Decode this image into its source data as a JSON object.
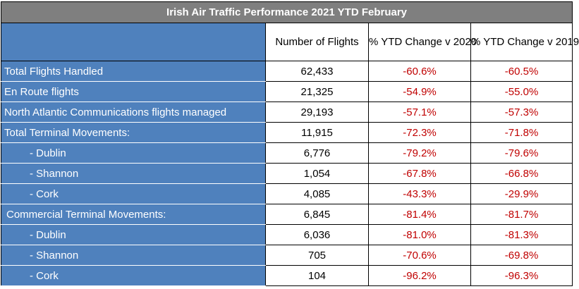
{
  "chart_data": {
    "type": "table",
    "title": "Irish Air Traffic Performance 2021 YTD February",
    "columns": [
      "",
      "Number of Flights",
      "% YTD Change v 2020",
      "% YTD Change v 2019"
    ],
    "rows": [
      {
        "label": "Total Flights Handled",
        "flights": "62,433",
        "chg2020": "-60.6%",
        "chg2019": "-60.5%",
        "level": 0
      },
      {
        "label": "En Route flights",
        "flights": "21,325",
        "chg2020": "-54.9%",
        "chg2019": "-55.0%",
        "level": 0
      },
      {
        "label": "North Atlantic Communications flights managed",
        "flights": "29,193",
        "chg2020": "-57.1%",
        "chg2019": "-57.3%",
        "level": 0
      },
      {
        "label": "Total Terminal Movements:",
        "flights": "11,915",
        "chg2020": "-72.3%",
        "chg2019": "-71.8%",
        "level": 0
      },
      {
        "label": "- Dublin",
        "flights": "6,776",
        "chg2020": "-79.2%",
        "chg2019": "-79.6%",
        "level": 2
      },
      {
        "label": "- Shannon",
        "flights": "1,054",
        "chg2020": "-67.8%",
        "chg2019": "-66.8%",
        "level": 2
      },
      {
        "label": "- Cork",
        "flights": "4,085",
        "chg2020": "-43.3%",
        "chg2019": "-29.9%",
        "level": 2
      },
      {
        "label": "Commercial Terminal Movements:",
        "flights": "6,845",
        "chg2020": "-81.4%",
        "chg2019": "-81.7%",
        "level": 1
      },
      {
        "label": "- Dublin",
        "flights": "6,036",
        "chg2020": "-81.0%",
        "chg2019": "-81.3%",
        "level": 2
      },
      {
        "label": "- Shannon",
        "flights": "705",
        "chg2020": "-70.6%",
        "chg2019": "-69.8%",
        "level": 2
      },
      {
        "label": "- Cork",
        "flights": "104",
        "chg2020": "-96.2%",
        "chg2019": "-96.3%",
        "level": 2
      }
    ],
    "colors": {
      "title_bg": "#7f7f7f",
      "label_bg": "#4f81bd",
      "label_text": "#ffffff",
      "negative_text": "#c00000"
    }
  }
}
